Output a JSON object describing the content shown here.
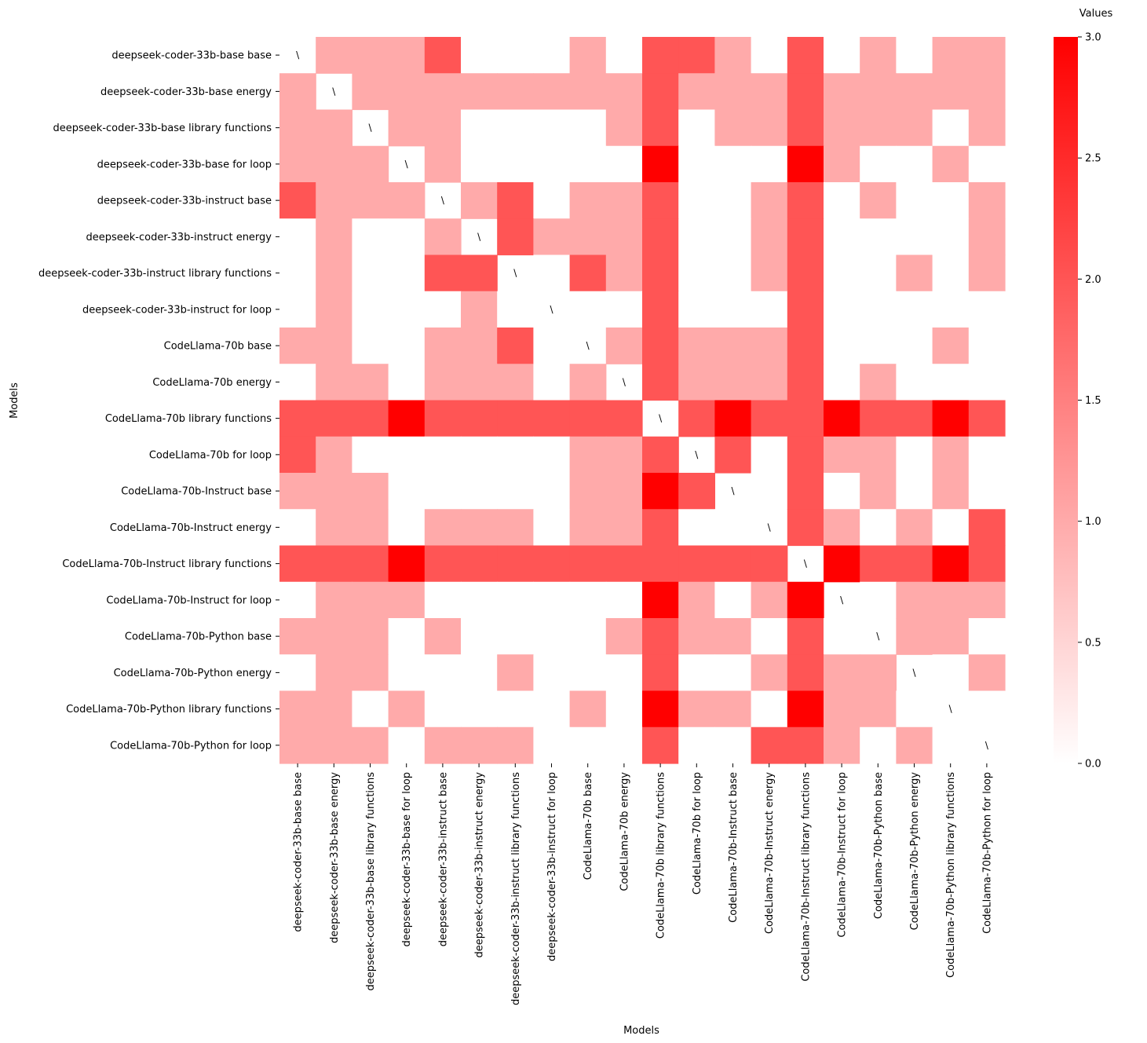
{
  "chart_data": {
    "type": "heatmap",
    "xlabel": "Models",
    "ylabel": "Models",
    "colorbar_label": "Values",
    "colorbar_range": [
      0,
      3
    ],
    "colorbar_ticks": [
      "0.0",
      "0.5",
      "1.0",
      "1.5",
      "2.0",
      "2.5",
      "3.0"
    ],
    "colors": {
      "low": "#ffffff",
      "high": "#ff0000"
    },
    "diagonal_marker": "\\",
    "categories": [
      "deepseek-coder-33b-base base",
      "deepseek-coder-33b-base energy",
      "deepseek-coder-33b-base library functions",
      "deepseek-coder-33b-base for loop",
      "deepseek-coder-33b-instruct base",
      "deepseek-coder-33b-instruct energy",
      "deepseek-coder-33b-instruct library functions",
      "deepseek-coder-33b-instruct for loop",
      "CodeLlama-70b base",
      "CodeLlama-70b energy",
      "CodeLlama-70b library functions",
      "CodeLlama-70b for loop",
      "CodeLlama-70b-Instruct base",
      "CodeLlama-70b-Instruct energy",
      "CodeLlama-70b-Instruct library functions",
      "CodeLlama-70b-Instruct for loop",
      "CodeLlama-70b-Python base",
      "CodeLlama-70b-Python energy",
      "CodeLlama-70b-Python library functions",
      "CodeLlama-70b-Python for loop"
    ],
    "values": [
      [
        null,
        1,
        1,
        1,
        2,
        0,
        0,
        0,
        1,
        0,
        2,
        2,
        1,
        0,
        2,
        0,
        1,
        0,
        1,
        1
      ],
      [
        1,
        null,
        1,
        1,
        1,
        1,
        1,
        1,
        1,
        1,
        2,
        1,
        1,
        1,
        2,
        1,
        1,
        1,
        1,
        1
      ],
      [
        1,
        1,
        null,
        1,
        1,
        0,
        0,
        0,
        0,
        1,
        2,
        0,
        1,
        1,
        2,
        1,
        1,
        1,
        0,
        1
      ],
      [
        1,
        1,
        1,
        null,
        1,
        0,
        0,
        0,
        0,
        0,
        3,
        0,
        0,
        0,
        3,
        1,
        0,
        0,
        1,
        0
      ],
      [
        2,
        1,
        1,
        1,
        null,
        1,
        2,
        0,
        1,
        1,
        2,
        0,
        0,
        1,
        2,
        0,
        1,
        0,
        0,
        1
      ],
      [
        0,
        1,
        0,
        0,
        1,
        null,
        2,
        1,
        1,
        1,
        2,
        0,
        0,
        1,
        2,
        0,
        0,
        0,
        0,
        1
      ],
      [
        0,
        1,
        0,
        0,
        2,
        2,
        null,
        0,
        2,
        1,
        2,
        0,
        0,
        1,
        2,
        0,
        0,
        1,
        0,
        1
      ],
      [
        0,
        1,
        0,
        0,
        0,
        1,
        0,
        null,
        0,
        0,
        2,
        0,
        0,
        0,
        2,
        0,
        0,
        0,
        0,
        0
      ],
      [
        1,
        1,
        0,
        0,
        1,
        1,
        2,
        0,
        null,
        1,
        2,
        1,
        1,
        1,
        2,
        0,
        0,
        0,
        1,
        0
      ],
      [
        0,
        1,
        1,
        0,
        1,
        1,
        1,
        0,
        1,
        null,
        2,
        1,
        1,
        1,
        2,
        0,
        1,
        0,
        0,
        0
      ],
      [
        2,
        2,
        2,
        3,
        2,
        2,
        2,
        2,
        2,
        2,
        null,
        2,
        3,
        2,
        2,
        3,
        2,
        2,
        3,
        2
      ],
      [
        2,
        1,
        0,
        0,
        0,
        0,
        0,
        0,
        1,
        1,
        2,
        null,
        2,
        0,
        2,
        1,
        1,
        0,
        1,
        0
      ],
      [
        1,
        1,
        1,
        0,
        0,
        0,
        0,
        0,
        1,
        1,
        3,
        2,
        null,
        0,
        2,
        0,
        1,
        0,
        1,
        0
      ],
      [
        0,
        1,
        1,
        0,
        1,
        1,
        1,
        0,
        1,
        1,
        2,
        0,
        0,
        null,
        2,
        1,
        0,
        1,
        0,
        2
      ],
      [
        2,
        2,
        2,
        3,
        2,
        2,
        2,
        2,
        2,
        2,
        2,
        2,
        2,
        2,
        null,
        3,
        2,
        2,
        3,
        2
      ],
      [
        0,
        1,
        1,
        1,
        0,
        0,
        0,
        0,
        0,
        0,
        3,
        1,
        0,
        1,
        3,
        null,
        0,
        1,
        1,
        1
      ],
      [
        1,
        1,
        1,
        0,
        1,
        0,
        0,
        0,
        0,
        1,
        2,
        1,
        1,
        0,
        2,
        0,
        null,
        1,
        1,
        0
      ],
      [
        0,
        1,
        1,
        0,
        0,
        0,
        1,
        0,
        0,
        0,
        2,
        0,
        0,
        1,
        2,
        1,
        1,
        null,
        0,
        1
      ],
      [
        1,
        1,
        0,
        1,
        0,
        0,
        0,
        0,
        1,
        0,
        3,
        1,
        1,
        0,
        3,
        1,
        1,
        0,
        null,
        0
      ],
      [
        1,
        1,
        1,
        0,
        1,
        1,
        1,
        0,
        0,
        0,
        2,
        0,
        0,
        2,
        2,
        1,
        0,
        1,
        0,
        null
      ]
    ]
  }
}
